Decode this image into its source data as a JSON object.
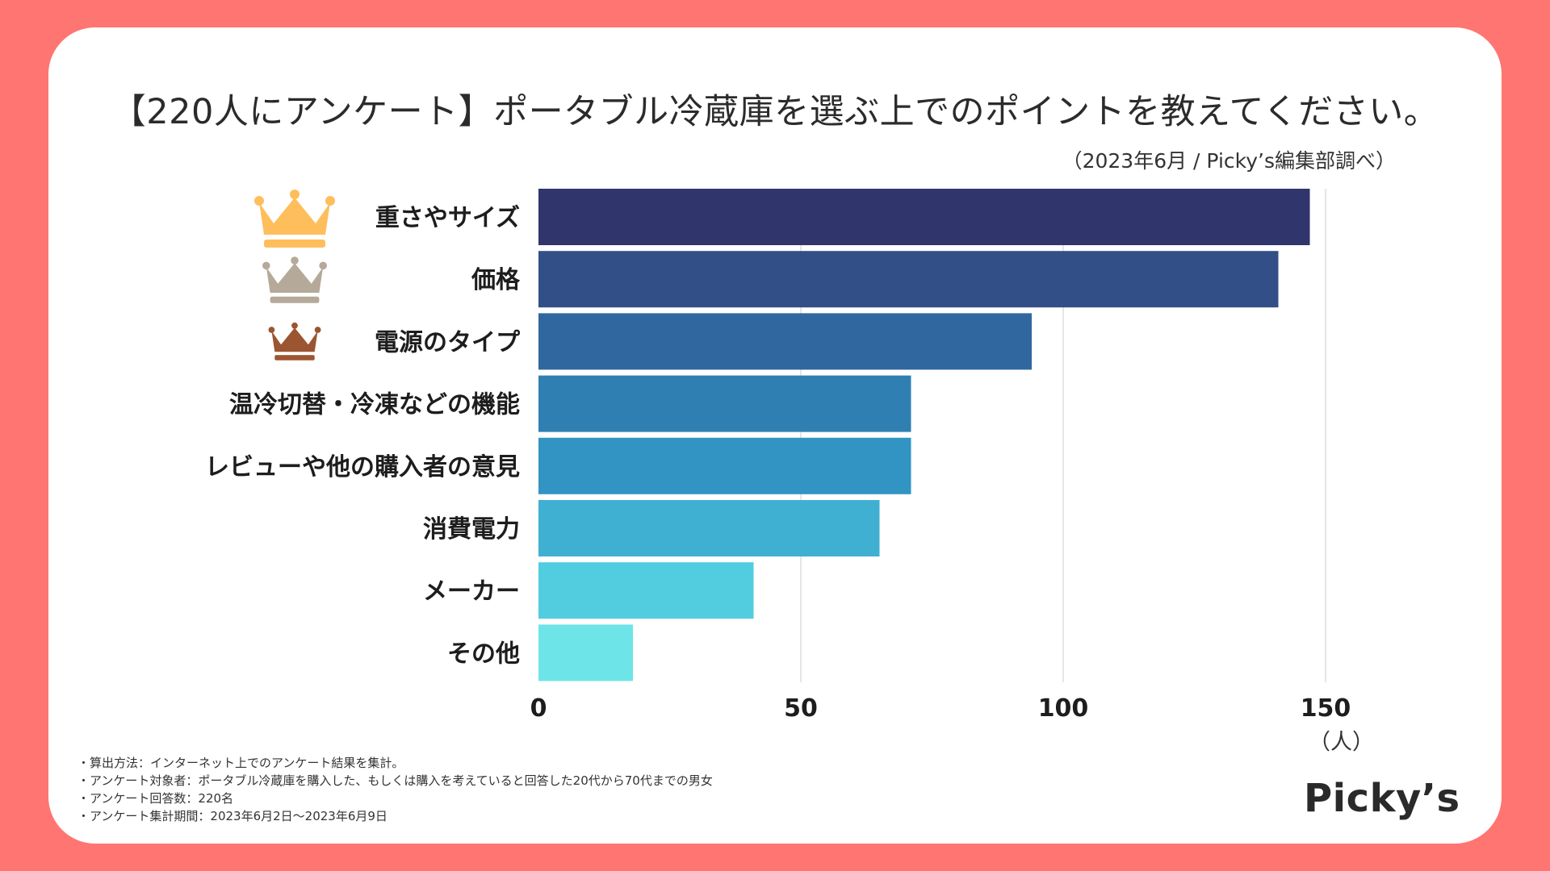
{
  "header": {
    "title": "【220人にアンケート】ポータブル冷蔵庫を選ぶ上でのポイントを教えてください。",
    "subtitle": "（2023年6月 / Picky’s編集部調べ）"
  },
  "chart_data": {
    "type": "bar",
    "orientation": "horizontal",
    "title": "【220人にアンケート】ポータブル冷蔵庫を選ぶ上でのポイントを教えてください。",
    "categories": [
      "重さやサイズ",
      "価格",
      "電源のタイプ",
      "温冷切替・冷凍などの機能",
      "レビューや他の購入者の意見",
      "消費電力",
      "メーカー",
      "その他"
    ],
    "values": [
      147,
      141,
      94,
      71,
      71,
      65,
      41,
      18
    ],
    "colors": [
      "#30356b",
      "#324f87",
      "#30679f",
      "#2f7fb3",
      "#3294c2",
      "#40b0d2",
      "#52cde0",
      "#6de5e8"
    ],
    "xlabel": "（人）",
    "ylabel": "",
    "xlim": [
      0,
      170
    ],
    "xticks": [
      0,
      50,
      100,
      150
    ],
    "grid": true,
    "rank_icons": [
      "crown-gold-icon",
      "crown-silver-icon",
      "crown-bronze-icon"
    ],
    "rank_colors": [
      "#ffbe5c",
      "#b5a99a",
      "#9b5530"
    ]
  },
  "axis": {
    "unit": "（人）"
  },
  "notes": [
    "・算出方法：インターネット上でのアンケート結果を集計。",
    "・アンケート対象者：ポータブル冷蔵庫を購入した、もしくは購入を考えていると回答した20代から70代までの男女",
    "・アンケート回答数：220名",
    "・アンケート集計期間：2023年6月2日〜2023年6月9日"
  ],
  "brand": {
    "logo_text": "Picky’s"
  },
  "colors": {
    "background": "#ff7571",
    "card": "#ffffff",
    "gridline": "#dddddd"
  }
}
